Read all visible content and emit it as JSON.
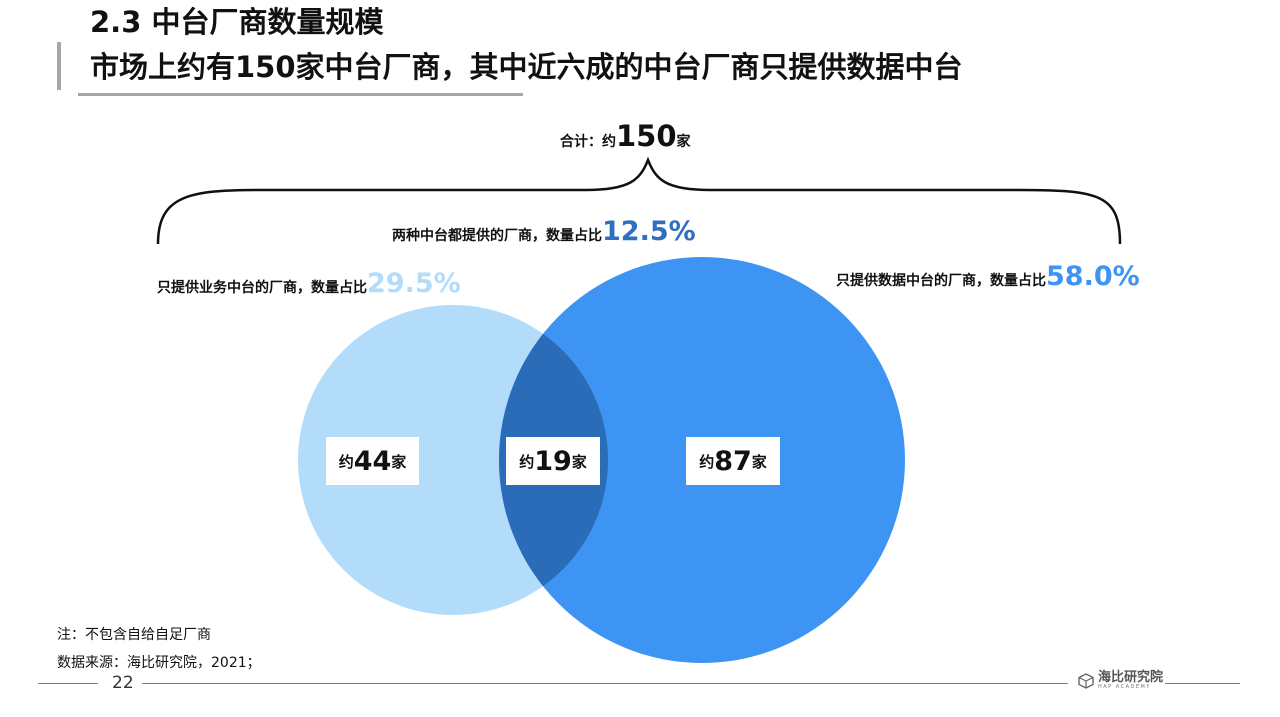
{
  "header": {
    "title": "2.3 中台厂商数量规模",
    "subtitle": "市场上约有150家中台厂商，其中近六成的中台厂商只提供数据中台"
  },
  "diagram": {
    "total": {
      "prefix": "合计：约",
      "value": "150",
      "unit": "家"
    },
    "both": {
      "label": "两种中台都提供的厂商，数量占比",
      "percent": "12.5%",
      "count": {
        "prefix": "约",
        "value": "19",
        "unit": "家"
      }
    },
    "business_only": {
      "label": "只提供业务中台的厂商，数量占比",
      "percent": "29.5%",
      "count": {
        "prefix": "约",
        "value": "44",
        "unit": "家"
      }
    },
    "data_only": {
      "label": "只提供数据中台的厂商，数量占比",
      "percent": "58.0%",
      "count": {
        "prefix": "约",
        "value": "87",
        "unit": "家"
      }
    },
    "colors": {
      "business_circle": "#b3dcfa",
      "data_circle": "#3d94f2",
      "overlap": "#2b6cb9",
      "brace": "#111111"
    }
  },
  "notes": {
    "note": "注：不包含自给自足厂商",
    "source": "数据来源：海比研究院，2021；"
  },
  "footer": {
    "page_number": "22",
    "logo_name": "海比研究院",
    "logo_sub": "HAP ACADEMY",
    "logo_icon": "cube-logo-icon"
  }
}
